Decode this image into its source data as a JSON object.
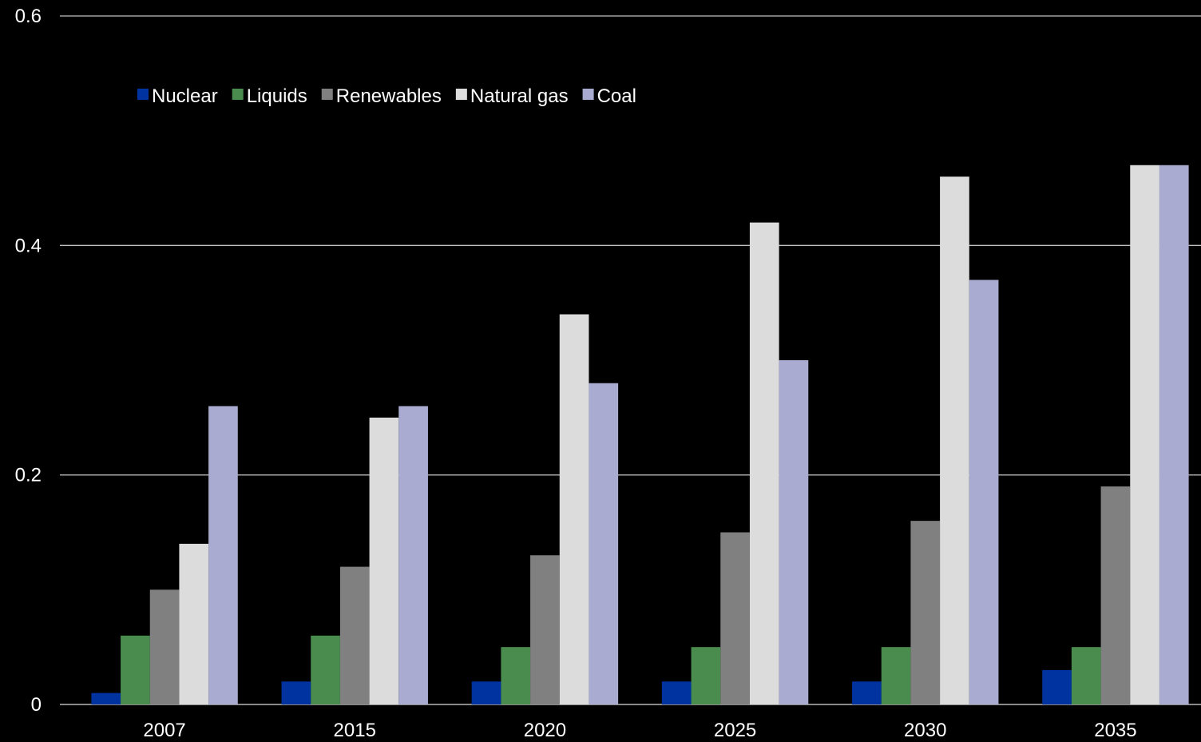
{
  "chart_data": {
    "type": "bar",
    "title": "",
    "xlabel": "",
    "ylabel": "",
    "categories": [
      "2007",
      "2015",
      "2020",
      "2025",
      "2030",
      "2035"
    ],
    "ylim": [
      0,
      0.6
    ],
    "yticks": [
      0,
      0.2,
      0.4,
      0.6
    ],
    "ytick_labels": [
      "0",
      "0.2",
      "0.4",
      "0.6"
    ],
    "grid": true,
    "legend_position": "top-left",
    "series": [
      {
        "name": "Nuclear",
        "color": "#0033a0",
        "values": [
          0.01,
          0.02,
          0.02,
          0.02,
          0.02,
          0.03
        ]
      },
      {
        "name": "Liquids",
        "color": "#4a8c4e",
        "values": [
          0.06,
          0.06,
          0.05,
          0.05,
          0.05,
          0.05
        ]
      },
      {
        "name": "Renewables",
        "color": "#808080",
        "values": [
          0.1,
          0.12,
          0.13,
          0.15,
          0.16,
          0.19
        ]
      },
      {
        "name": "Natural gas",
        "color": "#dcdcdc",
        "values": [
          0.14,
          0.25,
          0.34,
          0.42,
          0.46,
          0.47
        ]
      },
      {
        "name": "Coal",
        "color": "#a9acd0",
        "values": [
          0.26,
          0.26,
          0.28,
          0.3,
          0.37,
          0.47
        ]
      }
    ]
  }
}
